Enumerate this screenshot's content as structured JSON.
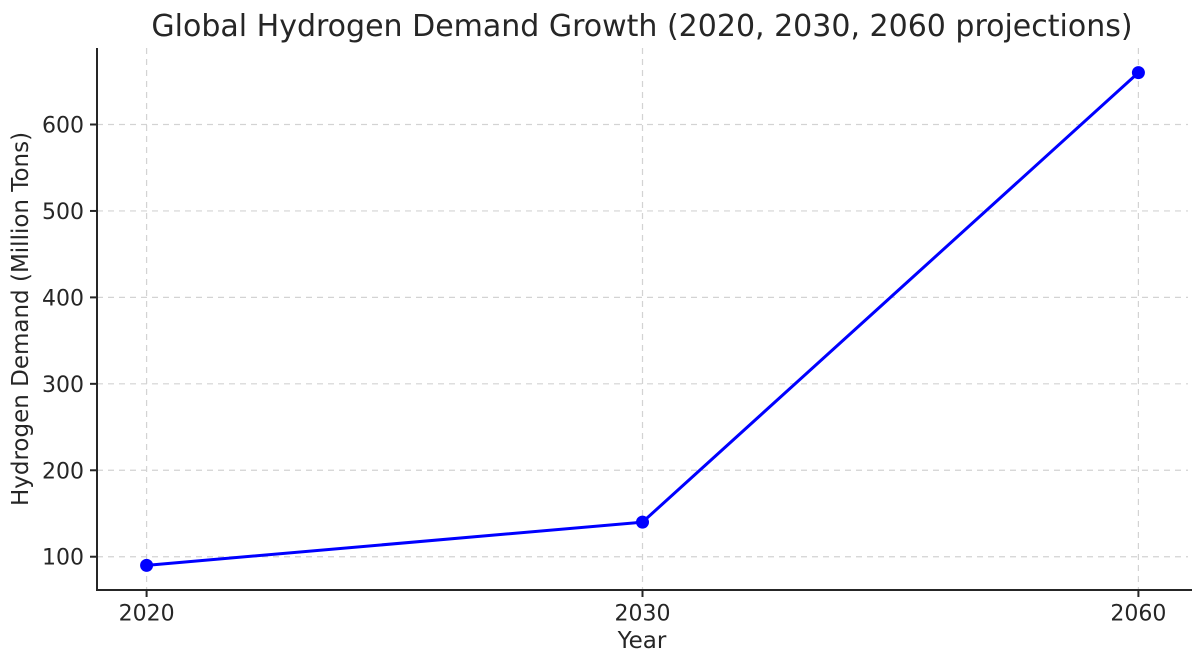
{
  "chart_data": {
    "type": "line",
    "title": "Global Hydrogen Demand Growth (2020, 2030, 2060 projections)",
    "xlabel": "Year",
    "ylabel": "Hydrogen Demand (Million Tons)",
    "categories": [
      "2020",
      "2030",
      "2060"
    ],
    "series": [
      {
        "name": "Hydrogen Demand",
        "values": [
          90,
          140,
          660
        ]
      }
    ],
    "yticks": [
      100,
      200,
      300,
      400,
      500,
      600
    ],
    "ylim": [
      61.5,
      688.5
    ],
    "xlim_index": [
      -0.1,
      2.1
    ],
    "grid": true,
    "grid_linestyle": "dashed",
    "legend_position": "none",
    "marker": "circle",
    "colors": {
      "line": "#0000ff",
      "marker": "#0000ff",
      "grid": "#d3d3d3",
      "spine": "#262626",
      "text": "#262626"
    }
  }
}
